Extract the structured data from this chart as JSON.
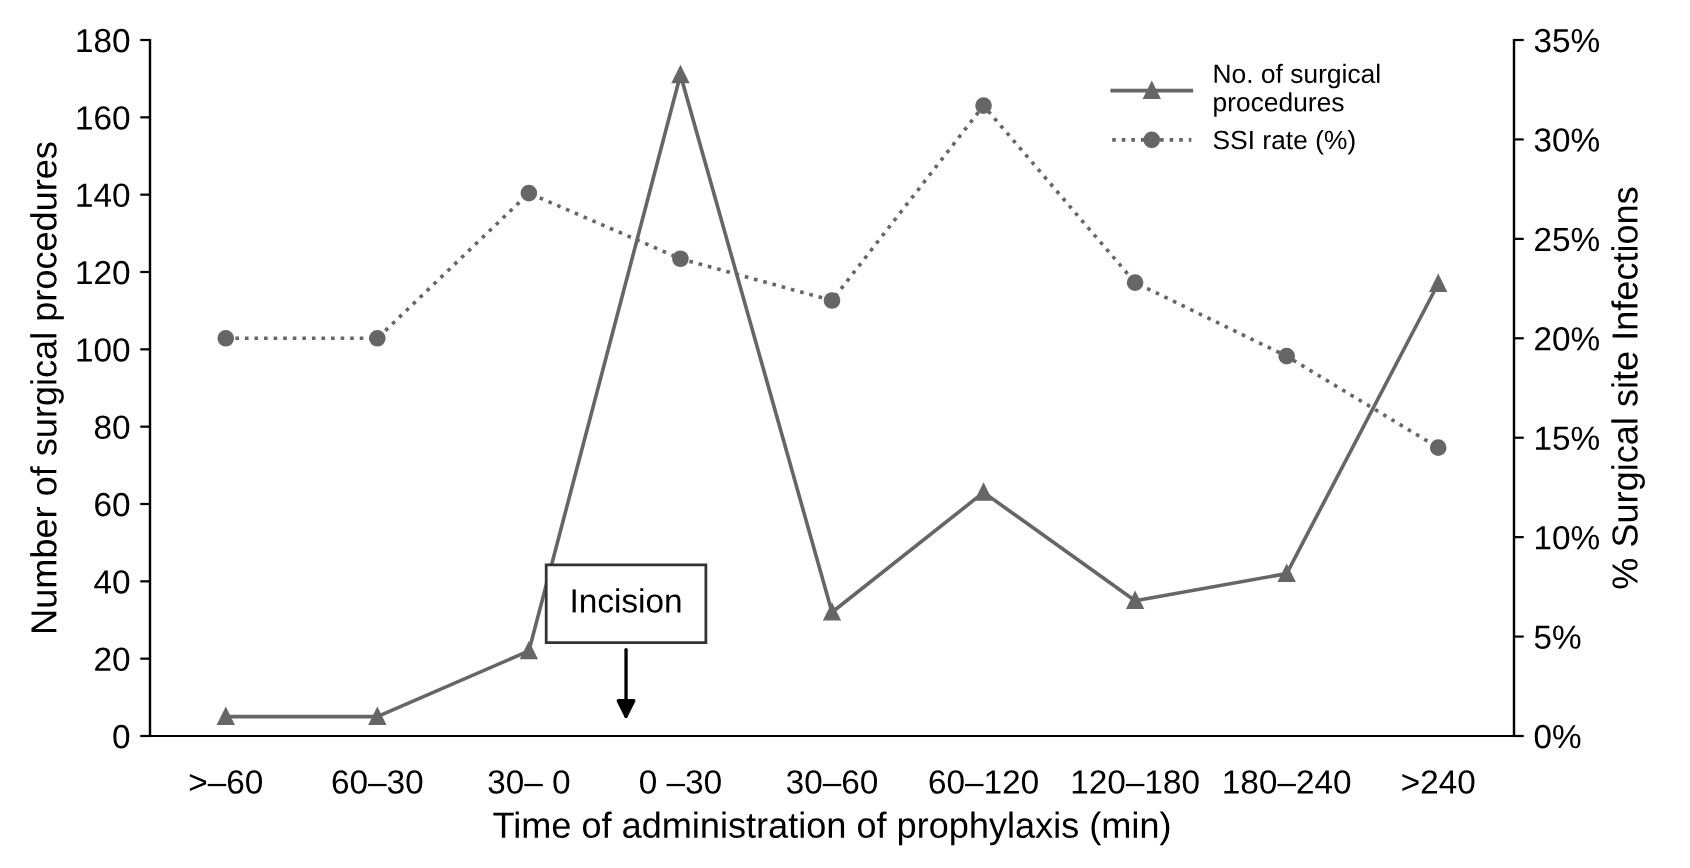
{
  "chart_data": {
    "type": "line",
    "xlabel": "Time of administration of prophylaxis (min)",
    "ylabel": "Number of surgical procedures",
    "y2label": "% Surgical site Infections",
    "categories": [
      ">–60",
      "60–30",
      "30– 0",
      "0 –30",
      "30–60",
      "60–120",
      "120–180",
      "180–240",
      ">240"
    ],
    "series": [
      {
        "name": "No. of surgical\nprocedures",
        "color": "#666666",
        "marker": "triangle",
        "line_style": "solid",
        "values": [
          5,
          5,
          22,
          171,
          32,
          63,
          35,
          42,
          117
        ]
      },
      {
        "name": "SSI rate (%)",
        "color": "#666666",
        "marker": "circle",
        "line_style": "dotted",
        "axis": "y2",
        "values": [
          20.0,
          20.0,
          27.3,
          24.0,
          21.9,
          31.7,
          22.8,
          19.1,
          14.5
        ]
      }
    ],
    "ylim": [
      0,
      180
    ],
    "yticks": [
      0,
      20,
      40,
      60,
      80,
      100,
      120,
      140,
      160,
      180
    ],
    "y2lim": [
      0,
      35
    ],
    "y2ticks": [
      {
        "value": 0,
        "label": "0%"
      },
      {
        "value": 5,
        "label": "5%"
      },
      {
        "value": 10,
        "label": "10%"
      },
      {
        "value": 15,
        "label": "15%"
      },
      {
        "value": 20,
        "label": "20%"
      },
      {
        "value": 25,
        "label": "25%"
      },
      {
        "value": 30,
        "label": "30%"
      },
      {
        "value": 35,
        "label": "35%"
      }
    ],
    "annotations": [
      "Incision"
    ],
    "legend": "top right",
    "grid": false
  }
}
